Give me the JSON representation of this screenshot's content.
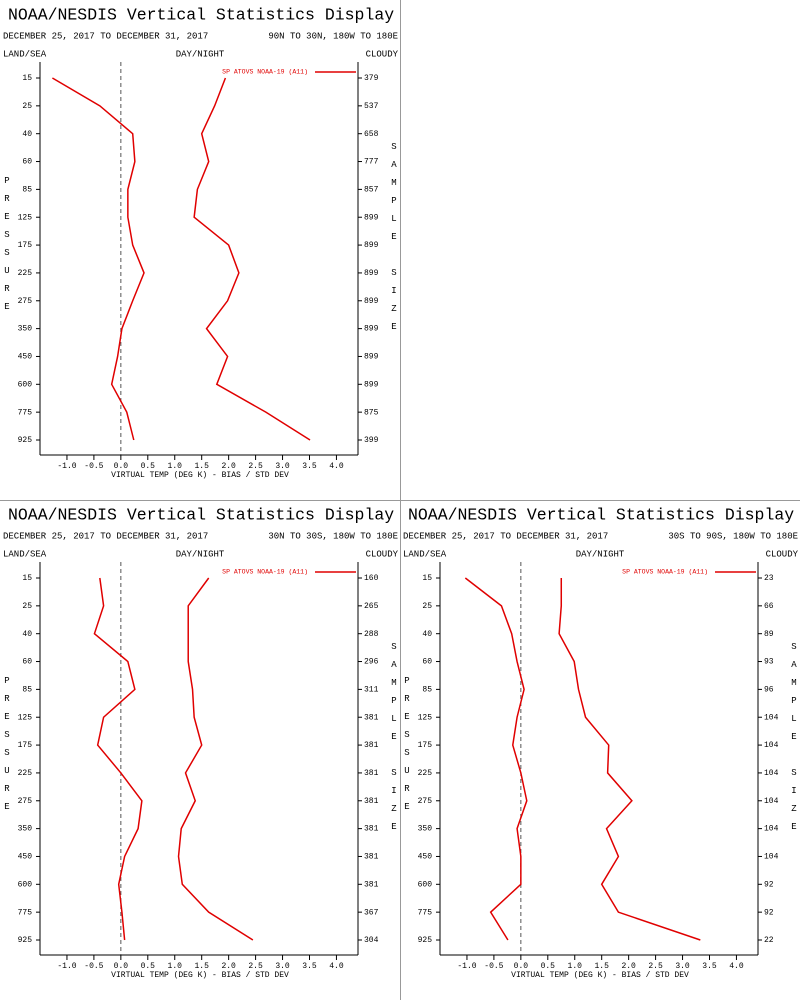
{
  "chart_data": [
    {
      "type": "line",
      "title": "NOAA/NESDIS Vertical Statistics Display",
      "subtitle": "DECEMBER 25, 2017 TO DECEMBER 31, 2017",
      "region": "90N TO 30N, 180W TO 180E",
      "land_sea_label": "LAND/SEA",
      "day_night_label": "DAY/NIGHT",
      "cloudy_label": "CLOUDY",
      "y_label": "PRESSURE",
      "y2_label": "SAMPLE SIZE",
      "x_label": "VIRTUAL TEMP (DEG K) - BIAS / STD DEV",
      "categories": [
        15,
        25,
        40,
        60,
        85,
        125,
        175,
        225,
        275,
        350,
        450,
        600,
        775,
        925
      ],
      "sample_size": [
        379,
        537,
        658,
        777,
        857,
        899,
        899,
        899,
        899,
        899,
        899,
        899,
        875,
        399
      ],
      "series": [
        {
          "name": "SP ATOVS NOAA-19 (A11)",
          "color": "#e00000",
          "values": [
            -1.27,
            -0.39,
            0.22,
            0.26,
            0.13,
            0.13,
            0.22,
            0.43,
            0.22,
            0.02,
            -0.06,
            -0.17,
            0.11,
            0.24
          ]
        },
        {
          "color": "#e00000",
          "values": [
            1.94,
            1.74,
            1.5,
            1.63,
            1.42,
            1.36,
            2.0,
            2.19,
            1.98,
            1.59,
            1.98,
            1.78,
            2.69,
            3.51
          ]
        }
      ],
      "xlim": [
        -1.5,
        4.4
      ],
      "xticks": [
        {
          "value": -1,
          "label": "-1.0"
        },
        -0.5,
        {
          "value": 0,
          "label": "0.0"
        },
        0.5,
        {
          "value": 1,
          "label": "1.0"
        },
        1.5,
        {
          "value": 2,
          "label": "2.0"
        },
        2.5,
        {
          "value": 3,
          "label": "3.0"
        },
        3.5,
        {
          "value": 4,
          "label": "4.0"
        }
      ],
      "legend": "upper right"
    },
    {
      "type": "line",
      "title": "NOAA/NESDIS Vertical Statistics Display",
      "subtitle": "DECEMBER 25, 2017 TO DECEMBER 31, 2017",
      "region": "30N TO 30S, 180W TO 180E",
      "land_sea_label": "LAND/SEA",
      "day_night_label": "DAY/NIGHT",
      "cloudy_label": "CLOUDY",
      "y_label": "PRESSURE",
      "y2_label": "SAMPLE SIZE",
      "x_label": "VIRTUAL TEMP (DEG K) - BIAS / STD DEV",
      "categories": [
        15,
        25,
        40,
        60,
        85,
        125,
        175,
        225,
        275,
        350,
        450,
        600,
        775,
        925
      ],
      "sample_size": [
        160,
        265,
        288,
        296,
        311,
        381,
        381,
        381,
        381,
        381,
        381,
        381,
        367,
        304
      ],
      "series": [
        {
          "name": "SP ATOVS NOAA-19 (A11)",
          "color": "#e00000",
          "values": [
            -0.39,
            -0.32,
            -0.49,
            0.13,
            0.26,
            -0.32,
            -0.43,
            0.0,
            0.39,
            0.32,
            0.07,
            -0.04,
            0.02,
            0.07
          ]
        },
        {
          "color": "#e00000",
          "values": [
            1.63,
            1.25,
            1.25,
            1.25,
            1.33,
            1.36,
            1.5,
            1.2,
            1.38,
            1.12,
            1.07,
            1.14,
            1.63,
            2.45
          ]
        }
      ],
      "xlim": [
        -1.5,
        4.4
      ],
      "xticks": [
        {
          "value": -1,
          "label": "-1.0"
        },
        -0.5,
        {
          "value": 0,
          "label": "0.0"
        },
        0.5,
        {
          "value": 1,
          "label": "1.0"
        },
        1.5,
        {
          "value": 2,
          "label": "2.0"
        },
        2.5,
        {
          "value": 3,
          "label": "3.0"
        },
        3.5,
        {
          "value": 4,
          "label": "4.0"
        }
      ],
      "legend": "upper right"
    },
    {
      "type": "line",
      "title": "NOAA/NESDIS Vertical Statistics Display",
      "subtitle": "DECEMBER 25, 2017 TO DECEMBER 31, 2017",
      "region": "30S TO 90S, 180W TO 180E",
      "land_sea_label": "LAND/SEA",
      "day_night_label": "DAY/NIGHT",
      "cloudy_label": "CLOUDY",
      "y_label": "PRESSURE",
      "y2_label": "SAMPLE SIZE",
      "x_label": "VIRTUAL TEMP (DEG K) - BIAS / STD DEV",
      "categories": [
        15,
        25,
        40,
        60,
        85,
        125,
        175,
        225,
        275,
        350,
        450,
        600,
        775,
        925
      ],
      "sample_size": [
        23,
        66,
        89,
        93,
        96,
        104,
        104,
        104,
        104,
        104,
        104,
        92,
        92,
        22
      ],
      "series": [
        {
          "name": "SP ATOVS NOAA-19 (A11)",
          "color": "#e00000",
          "values": [
            -1.03,
            -0.36,
            -0.17,
            -0.07,
            0.06,
            -0.07,
            -0.15,
            0.0,
            0.11,
            -0.07,
            0.0,
            0.0,
            -0.56,
            -0.24
          ]
        },
        {
          "color": "#e00000",
          "values": [
            0.75,
            0.75,
            0.71,
            0.99,
            1.07,
            1.2,
            1.63,
            1.61,
            2.06,
            1.59,
            1.81,
            1.5,
            1.81,
            3.33
          ]
        }
      ],
      "xlim": [
        -1.5,
        4.4
      ],
      "xticks": [
        {
          "value": -1,
          "label": "-1.0"
        },
        -0.5,
        {
          "value": 0,
          "label": "0.0"
        },
        0.5,
        {
          "value": 1,
          "label": "1.0"
        },
        1.5,
        {
          "value": 2,
          "label": "2.0"
        },
        2.5,
        {
          "value": 3,
          "label": "3.0"
        },
        3.5,
        {
          "value": 4,
          "label": "4.0"
        }
      ],
      "legend": "upper right"
    }
  ]
}
